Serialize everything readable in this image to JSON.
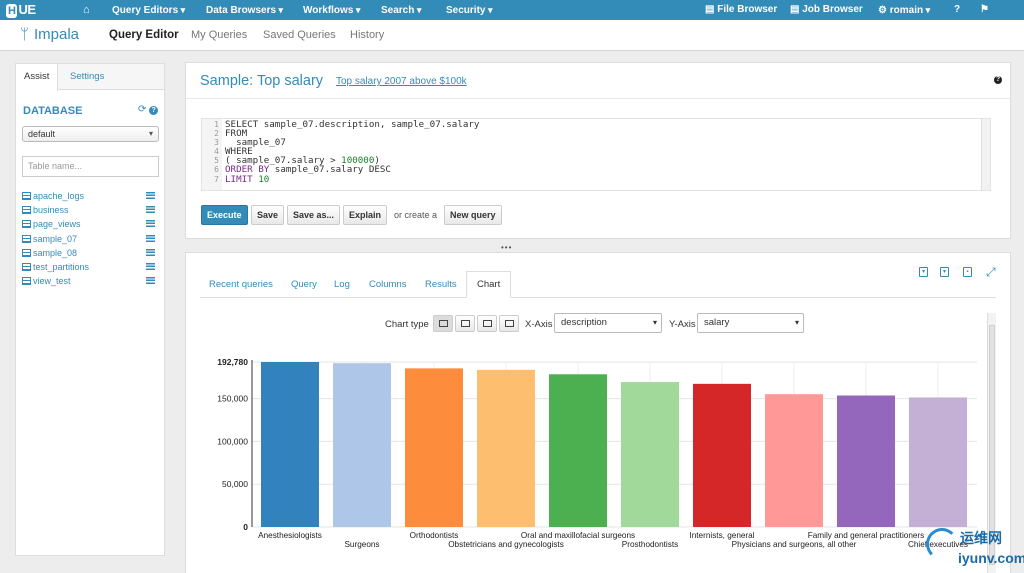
{
  "topnav": {
    "logo_h": "H",
    "logo_rest": "UE",
    "items": [
      "Query Editors",
      "Data Browsers",
      "Workflows",
      "Search",
      "Security"
    ],
    "right": {
      "file_browser": "File Browser",
      "job_browser": "Job Browser",
      "user": "romain",
      "help": "?",
      "flag": "⚑"
    }
  },
  "subnav": {
    "brand": "Impala",
    "tabs": [
      "Query Editor",
      "My Queries",
      "Saved Queries",
      "History"
    ]
  },
  "assist": {
    "tabs": [
      "Assist",
      "Settings"
    ],
    "database_title": "DATABASE",
    "refresh_icon": "⟳",
    "help_icon": "?",
    "database_value": "default",
    "table_filter_placeholder": "Table name...",
    "tables": [
      "apache_logs",
      "business",
      "page_views",
      "sample_07",
      "sample_08",
      "test_partitions",
      "view_test"
    ]
  },
  "editor": {
    "title": "Sample: Top salary",
    "description": "Top salary 2007 above $100k",
    "help": "?",
    "line_numbers": [
      "1",
      "2",
      "3",
      "4",
      "5",
      "6",
      "7"
    ],
    "code": {
      "l1": "SELECT sample_07.description, sample_07.salary",
      "l2": "FROM",
      "l3": "  sample_07",
      "l4": "WHERE",
      "l5a": "( sample_07.salary > ",
      "l5b": "100000",
      "l5c": ")",
      "l6a": "ORDER BY",
      "l6b": " sample_07.salary DESC",
      "l7a": "LIMIT ",
      "l7b": "10"
    },
    "buttons": {
      "execute": "Execute",
      "save": "Save",
      "save_as": "Save as...",
      "explain": "Explain",
      "or_create": "or create a",
      "new_query": "New query"
    },
    "resizer": "•••"
  },
  "results": {
    "tabs": [
      "Recent queries",
      "Query",
      "Log",
      "Columns",
      "Results",
      "Chart"
    ],
    "chart_type_label": "Chart type",
    "x_axis_label": "X-Axis",
    "x_axis_value": "description",
    "y_axis_label": "Y-Axis",
    "y_axis_value": "salary"
  },
  "watermark": {
    "zh": "运维网",
    "en": "iyunv.com"
  },
  "colors": {
    "brand": "#338bb8"
  },
  "chart_data": {
    "type": "bar",
    "categories": [
      "Anesthesiologists",
      "Surgeons",
      "Orthodontists",
      "Obstetricians and gynecologists",
      "Oral and maxillofacial surgeons",
      "Prosthodontists",
      "Internists, general",
      "Physicians and surgeons, all other",
      "Family and general practitioners",
      "Chief executives"
    ],
    "values": [
      192780,
      191410,
      185340,
      183600,
      178440,
      169360,
      167270,
      155150,
      153640,
      151370
    ],
    "colors": [
      "#3182bd",
      "#aec7e8",
      "#fd8d3c",
      "#fdbf6f",
      "#4caf50",
      "#a1d99b",
      "#d62728",
      "#ff9896",
      "#9467bd",
      "#c5b0d5"
    ],
    "y_ticks": [
      0,
      50000,
      100000,
      150000,
      192780
    ],
    "y_tick_labels": [
      "0",
      "50,000",
      "100,000",
      "150,000",
      "192,780"
    ],
    "ylim": [
      0,
      192780
    ],
    "title": "",
    "xlabel": "",
    "ylabel": ""
  }
}
